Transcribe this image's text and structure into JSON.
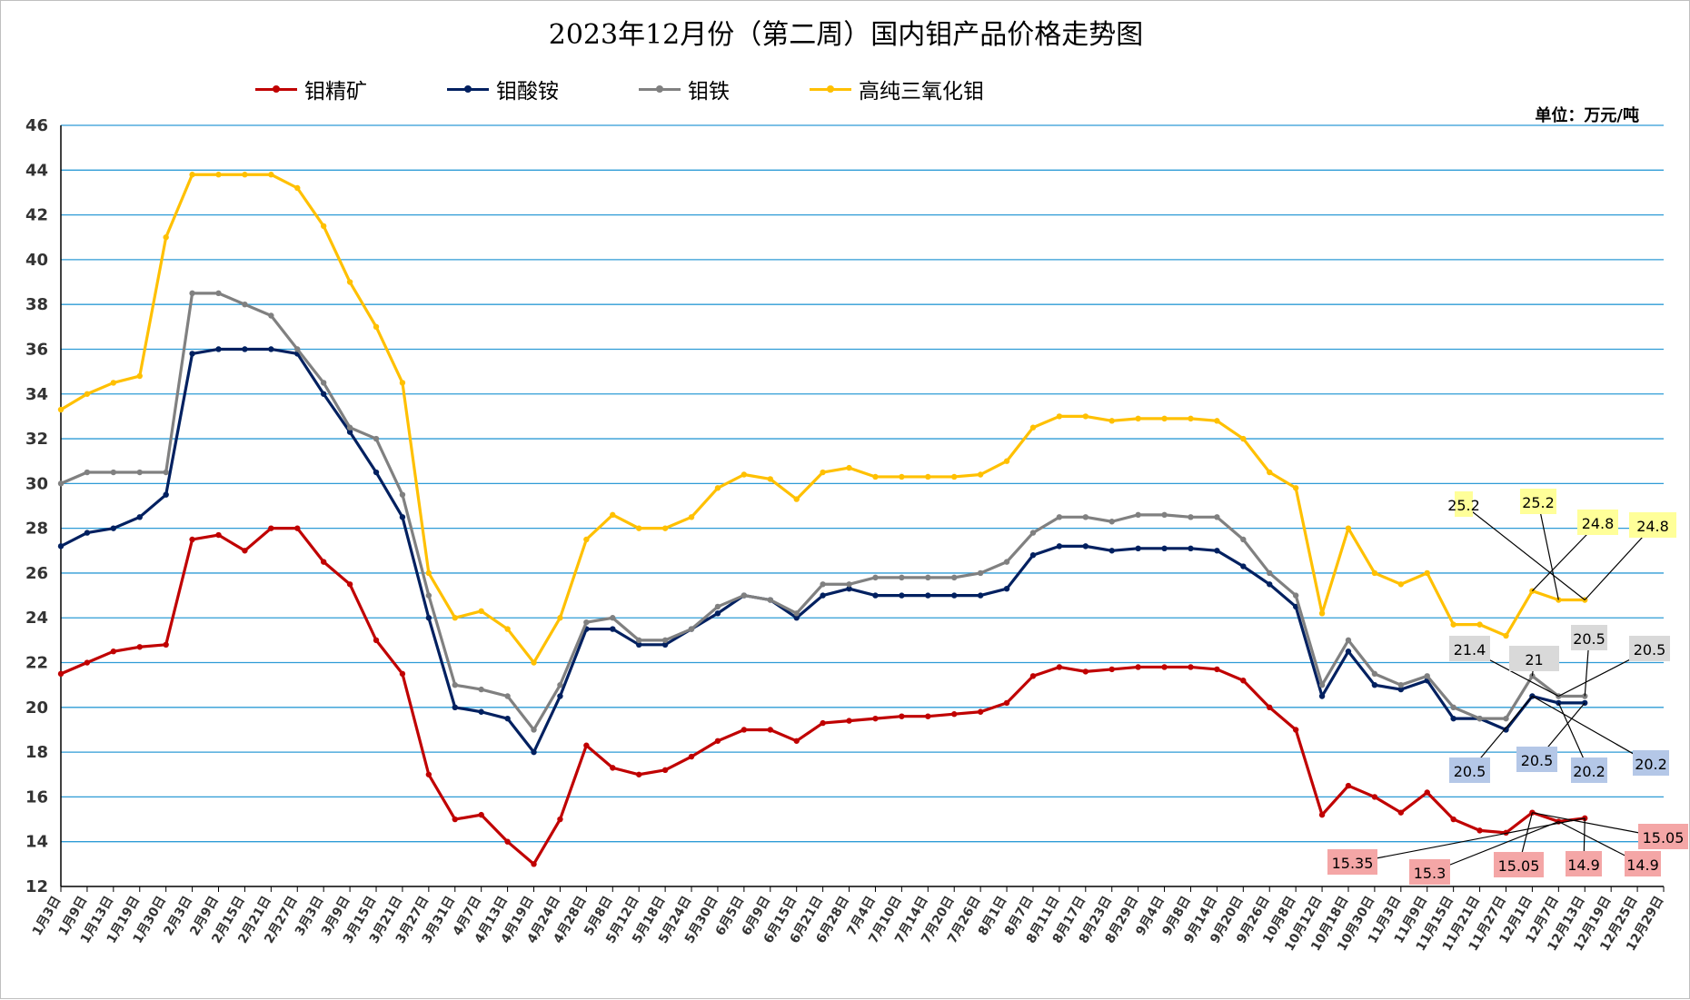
{
  "chart_data": {
    "type": "line",
    "title": "2023年12月份（第二周）国内钼产品价格走势图",
    "unit_label": "单位：万元/吨",
    "ylim": [
      12,
      46
    ],
    "yticks": [
      12,
      14,
      16,
      18,
      20,
      22,
      24,
      26,
      28,
      30,
      32,
      34,
      36,
      38,
      40,
      42,
      44,
      46
    ],
    "grid": true,
    "legend_position": "top",
    "x_categories": [
      "1月3日",
      "1月9日",
      "1月13日",
      "1月19日",
      "1月30日",
      "2月3日",
      "2月9日",
      "2月15日",
      "2月21日",
      "2月27日",
      "3月3日",
      "3月9日",
      "3月15日",
      "3月21日",
      "3月27日",
      "3月31日",
      "4月7日",
      "4月13日",
      "4月19日",
      "4月24日",
      "4月28日",
      "5月8日",
      "5月12日",
      "5月18日",
      "5月24日",
      "5月30日",
      "6月5日",
      "6月9日",
      "6月15日",
      "6月21日",
      "6月28日",
      "7月4日",
      "7月10日",
      "7月14日",
      "7月20日",
      "7月26日",
      "8月1日",
      "8月7日",
      "8月11日",
      "8月17日",
      "8月23日",
      "8月29日",
      "9月4日",
      "9月8日",
      "9月14日",
      "9月20日",
      "9月26日",
      "10月8日",
      "10月12日",
      "10月18日",
      "10月30日",
      "11月3日",
      "11月9日",
      "11月15日",
      "11月21日",
      "11月27日",
      "12月1日",
      "12月7日",
      "12月13日",
      "12月19日",
      "12月25日",
      "12月29日"
    ],
    "series": [
      {
        "name": "钼精矿",
        "color": "#C00000",
        "values": [
          21.5,
          22,
          22.5,
          22.7,
          22.8,
          27.5,
          27.7,
          27,
          28,
          28,
          26.5,
          25.5,
          23,
          21.5,
          17,
          15,
          15.2,
          14,
          13,
          15,
          18.3,
          17.3,
          17,
          17.2,
          17.8,
          18.5,
          19,
          19,
          18.5,
          19.3,
          19.4,
          19.5,
          19.6,
          19.6,
          19.7,
          19.8,
          20.2,
          21.4,
          21.8,
          21.6,
          21.7,
          21.8,
          21.8,
          21.8,
          21.7,
          21.2,
          20,
          19,
          15.2,
          16.5,
          16,
          15.3,
          16.2,
          15,
          14.5,
          14.4,
          15.3,
          14.9,
          15.05,
          null,
          null,
          null
        ]
      },
      {
        "name": "钼酸铵",
        "color": "#002060",
        "values": [
          27.2,
          27.8,
          28,
          28.5,
          29.5,
          35.8,
          36,
          36,
          36,
          35.8,
          34,
          32.3,
          30.5,
          28.5,
          24,
          20,
          19.8,
          19.5,
          18,
          20.5,
          23.5,
          23.5,
          22.8,
          22.8,
          23.5,
          24.2,
          25,
          24.8,
          24,
          25,
          25.3,
          25,
          25,
          25,
          25,
          25,
          25.3,
          26.8,
          27.2,
          27.2,
          27,
          27.1,
          27.1,
          27.1,
          27,
          26.3,
          25.5,
          24.5,
          20.5,
          22.5,
          21,
          20.8,
          21.2,
          19.5,
          19.5,
          19,
          20.5,
          20.2,
          20.2,
          null,
          null,
          null
        ]
      },
      {
        "name": "钼铁",
        "color": "#808080",
        "values": [
          30,
          30.5,
          30.5,
          30.5,
          30.5,
          38.5,
          38.5,
          38,
          37.5,
          36,
          34.5,
          32.5,
          32,
          29.5,
          25,
          21,
          20.8,
          20.5,
          19,
          21,
          23.8,
          24,
          23,
          23,
          23.5,
          24.5,
          25,
          24.8,
          24.2,
          25.5,
          25.5,
          25.8,
          25.8,
          25.8,
          25.8,
          26,
          26.5,
          27.8,
          28.5,
          28.5,
          28.3,
          28.6,
          28.6,
          28.5,
          28.5,
          27.5,
          26,
          25,
          21,
          23,
          21.5,
          21,
          21.4,
          20,
          19.5,
          19.5,
          21.4,
          20.5,
          20.5,
          null,
          null,
          null
        ]
      },
      {
        "name": "高纯三氧化钼",
        "color": "#FFC000",
        "values": [
          33.3,
          34,
          34.5,
          34.8,
          41,
          43.8,
          43.8,
          43.8,
          43.8,
          43.2,
          41.5,
          39,
          37,
          34.5,
          26,
          24,
          24.3,
          23.5,
          22,
          24,
          27.5,
          28.6,
          28,
          28,
          28.5,
          29.8,
          30.4,
          30.2,
          29.3,
          30.5,
          30.7,
          30.3,
          30.3,
          30.3,
          30.3,
          30.4,
          31,
          32.5,
          33,
          33,
          32.8,
          32.9,
          32.9,
          32.9,
          32.8,
          32,
          30.5,
          29.8,
          24.2,
          28,
          26,
          25.5,
          26,
          23.7,
          23.7,
          23.2,
          25.2,
          24.8,
          24.8,
          null,
          null,
          null
        ]
      }
    ],
    "annotations": [
      {
        "series": "高纯三氧化钼",
        "text": "25.2",
        "bg": "#FFFF99"
      },
      {
        "series": "高纯三氧化钼",
        "text": "25.2",
        "bg": "#FFFF99"
      },
      {
        "series": "高纯三氧化钼",
        "text": "24.8",
        "bg": "#FFFF99"
      },
      {
        "series": "高纯三氧化钼",
        "text": "24.8",
        "bg": "#FFFF99"
      },
      {
        "series": "钼铁",
        "text": "21.4",
        "bg": "#D9D9D9"
      },
      {
        "series": "钼铁",
        "text": "21",
        "bg": "#D9D9D9"
      },
      {
        "series": "钼铁",
        "text": "20.5",
        "bg": "#D9D9D9"
      },
      {
        "series": "钼铁",
        "text": "20.5",
        "bg": "#D9D9D9"
      },
      {
        "series": "钼酸铵",
        "text": "20.5",
        "bg": "#B4C7E7"
      },
      {
        "series": "钼酸铵",
        "text": "20.5",
        "bg": "#B4C7E7"
      },
      {
        "series": "钼酸铵",
        "text": "20.2",
        "bg": "#B4C7E7"
      },
      {
        "series": "钼酸铵",
        "text": "20.2",
        "bg": "#B4C7E7"
      },
      {
        "series": "钼精矿",
        "text": "15.35",
        "bg": "#F4A6A6"
      },
      {
        "series": "钼精矿",
        "text": "15.3",
        "bg": "#F4A6A6"
      },
      {
        "series": "钼精矿",
        "text": "15.05",
        "bg": "#F4A6A6"
      },
      {
        "series": "钼精矿",
        "text": "14.9",
        "bg": "#F4A6A6"
      },
      {
        "series": "钼精矿",
        "text": "14.9",
        "bg": "#F4A6A6"
      },
      {
        "series": "钼精矿",
        "text": "15.05",
        "bg": "#F4A6A6"
      }
    ]
  }
}
